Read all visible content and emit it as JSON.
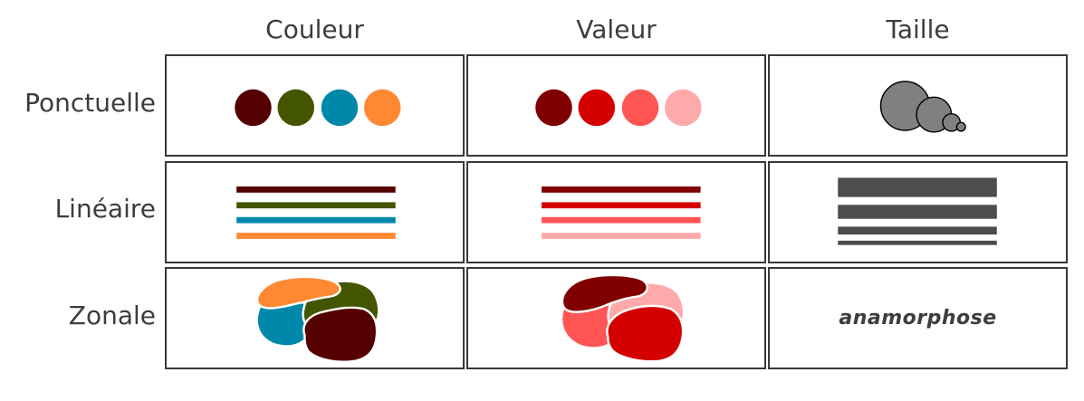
{
  "columns": [
    {
      "id": "couleur",
      "label": "Couleur"
    },
    {
      "id": "valeur",
      "label": "Valeur"
    },
    {
      "id": "taille",
      "label": "Taille"
    }
  ],
  "rows": [
    {
      "id": "ponctuelle",
      "label": "Ponctuelle"
    },
    {
      "id": "lineaire",
      "label": "Linéaire"
    },
    {
      "id": "zonale",
      "label": "Zonale"
    }
  ],
  "palettes": {
    "couleur": [
      "#550000",
      "#445500",
      "#0088aa",
      "#ff8833"
    ],
    "valeur": [
      "#800000",
      "#d40000",
      "#ff5555",
      "#ffaaaa"
    ],
    "taille": "#808080",
    "taille_lines": "#4d4d4d"
  },
  "zonale_taille_label": "anamorphose"
}
